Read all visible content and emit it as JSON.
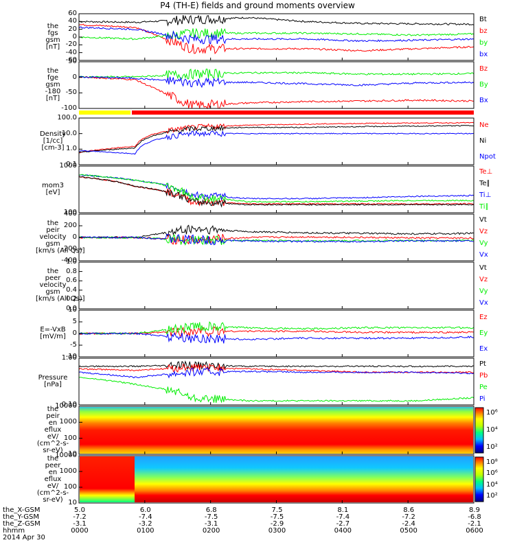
{
  "title": "P4 (TH-E) fields and ground moments overview",
  "colors": {
    "black": "#000000",
    "red": "#ff0000",
    "green": "#00ee00",
    "blue": "#0000ff",
    "yellow": "#ffff00"
  },
  "panels": [
    {
      "id": "fgs",
      "ylabel": [
        "the",
        "fgs",
        "gsm",
        "[nT]"
      ],
      "yticks": [
        "60",
        "40",
        "20",
        "0",
        "-20",
        "-40",
        "-60"
      ],
      "ylim": [
        -60,
        60
      ],
      "series": [
        "Bt",
        "bz",
        "by",
        "bx"
      ]
    },
    {
      "id": "fge",
      "ylabel": [
        "the",
        "fge",
        "gsm",
        "-180",
        "[nT]"
      ],
      "yticks": [
        "50",
        "0",
        "-50",
        "-100"
      ],
      "ylim": [
        -115,
        55
      ],
      "series": [
        "Bz",
        "By",
        "Bx"
      ]
    },
    {
      "id": "density",
      "ylabel": [
        "Density",
        "[1/cc]",
        "[cm-3]"
      ],
      "yticks": [
        "100.0",
        "10.0",
        "1.0",
        "0.1"
      ],
      "scale": "log",
      "ylim": [
        0.1,
        100
      ],
      "series": [
        "Ne",
        "Ni",
        "Npot"
      ]
    },
    {
      "id": "temperature",
      "ylabel": [
        "mom3",
        "[eV]"
      ],
      "yticks": [
        "1000",
        "100"
      ],
      "scale": "log",
      "ylim": [
        20,
        4000
      ],
      "series": [
        "Te⊥",
        "Te∥",
        "Ti⊥",
        "Ti∥"
      ]
    },
    {
      "id": "peir_velocity",
      "ylabel": [
        "the",
        "peir",
        "velocity",
        "gsm",
        "[km/s (All Qs)]"
      ],
      "yticks": [
        "400",
        "200",
        "0",
        "-200",
        "-400"
      ],
      "ylim": [
        -400,
        400
      ],
      "series": [
        "Vt",
        "Vz",
        "Vy",
        "Vx"
      ]
    },
    {
      "id": "peer_velocity",
      "ylabel": [
        "the",
        "peer",
        "velocity",
        "gsm",
        "[km/s (All Qs)]"
      ],
      "yticks": [
        "1.0",
        "0.8",
        "0.6",
        "0.4",
        "0.2",
        "0.0"
      ],
      "ylim": [
        0,
        1
      ],
      "series": [
        "Vt",
        "Vz",
        "Vy",
        "Vx"
      ]
    },
    {
      "id": "efield",
      "ylabel": [
        "E=-VxB",
        "[mV/m]"
      ],
      "yticks": [
        "10",
        "5",
        "0",
        "-5",
        "-10"
      ],
      "ylim": [
        -10,
        10
      ],
      "series": [
        "Ez",
        "Ey",
        "Ex"
      ]
    },
    {
      "id": "pressure",
      "ylabel": [
        "Pressure",
        "[nPa]"
      ],
      "yticks": [
        "1.00",
        "0.10"
      ],
      "scale": "log",
      "ylim": [
        0.02,
        2
      ],
      "series": [
        "Pt",
        "Pb",
        "Pe",
        "Pi"
      ]
    },
    {
      "id": "peir_eflux",
      "ylabel": [
        "the",
        "peir",
        "en",
        "eflux",
        "eV/",
        "(cm^2-s-",
        "sr-eV)"
      ],
      "yticks": [
        "10000",
        "1000",
        "100",
        "10"
      ],
      "scale": "log",
      "ylim": [
        8,
        30000
      ],
      "colorbar": [
        "10⁶",
        "10⁴",
        "10²"
      ]
    },
    {
      "id": "peer_eflux",
      "ylabel": [
        "the",
        "peer",
        "en",
        "eflux",
        "eV/",
        "(cm^2-s-",
        "sr-eV)"
      ],
      "yticks": [
        "10000",
        "1000",
        "100",
        "10"
      ],
      "scale": "log",
      "ylim": [
        8,
        30000
      ],
      "colorbar": [
        "10⁸",
        "10⁶",
        "10⁴",
        "10²"
      ]
    }
  ],
  "chart_data": {
    "type": "line",
    "title": "P4 (TH-E) fields and ground moments overview",
    "x_hhmm": [
      "0000",
      "0100",
      "0200",
      "0300",
      "0400",
      "0500",
      "0600"
    ],
    "xaxis_rows": [
      {
        "label": "the_X-GSM",
        "values": [
          "5.0",
          "6.0",
          "6.8",
          "7.5",
          "8.1",
          "8.6",
          "8.9"
        ]
      },
      {
        "label": "the_Y-GSM",
        "values": [
          "-7.2",
          "-7.4",
          "-7.5",
          "-7.5",
          "-7.4",
          "-7.2",
          "-6.8"
        ]
      },
      {
        "label": "the_Z-GSM",
        "values": [
          "-3.1",
          "-3.2",
          "-3.1",
          "-2.9",
          "-2.7",
          "-2.4",
          "-2.1"
        ]
      },
      {
        "label": "hhmm",
        "values": [
          "0000",
          "0100",
          "0200",
          "0300",
          "0400",
          "0500",
          "0600"
        ]
      }
    ],
    "date": "2014 Apr 30",
    "fgs": {
      "Bt": [
        40,
        38,
        45,
        50,
        40,
        35,
        34,
        33
      ],
      "bz": [
        32,
        25,
        -30,
        -30,
        -30,
        -35,
        -30,
        -25
      ],
      "by": [
        0,
        -5,
        10,
        10,
        10,
        8,
        5,
        8
      ],
      "bx": [
        25,
        20,
        -5,
        -5,
        -5,
        -10,
        -8,
        -5
      ]
    },
    "fge": {
      "Bz": [
        0,
        -10,
        -105,
        -95,
        -90,
        -88,
        -85,
        -88
      ],
      "By": [
        0,
        0,
        10,
        15,
        15,
        10,
        10,
        12
      ],
      "Bx": [
        0,
        -5,
        -20,
        -20,
        -25,
        -30,
        -22,
        -20
      ]
    },
    "density": {
      "Ne": [
        0.6,
        1.5,
        25,
        35,
        40,
        45,
        48,
        50
      ],
      "Ni": [
        0.6,
        1.2,
        20,
        25,
        25,
        28,
        30,
        33
      ],
      "Npot": [
        0.8,
        0.5,
        10,
        10,
        10,
        10,
        10,
        10
      ]
    },
    "temperature": {
      "Te⊥": [
        1200,
        400,
        70,
        55,
        55,
        55,
        55,
        55
      ],
      "Te∥": [
        1200,
        400,
        70,
        50,
        50,
        50,
        50,
        50
      ],
      "Ti⊥": [
        1500,
        800,
        150,
        100,
        100,
        110,
        130,
        140
      ],
      "Ti∥": [
        1500,
        800,
        120,
        70,
        70,
        75,
        80,
        80
      ]
    },
    "peir_velocity": {
      "Vt": [
        0,
        0,
        150,
        100,
        80,
        70,
        60,
        70
      ],
      "Vz": [
        0,
        0,
        -50,
        0,
        10,
        0,
        -10,
        -10
      ],
      "Vy": [
        0,
        0,
        -50,
        -50,
        -60,
        -55,
        -55,
        -50
      ],
      "Vx": [
        0,
        0,
        -40,
        -60,
        -70,
        -70,
        -60,
        -60
      ]
    },
    "efield": {
      "Ez": [
        0,
        0,
        1,
        1,
        1,
        0.5,
        0.5,
        0.5
      ],
      "Ey": [
        0,
        0,
        3,
        2.5,
        2,
        2.5,
        2.5,
        2.5
      ],
      "Ex": [
        0,
        0,
        -2,
        -2.5,
        -2,
        -2,
        -2,
        -1.5
      ]
    },
    "pressure": {
      "Pt": [
        0.9,
        0.9,
        1.0,
        0.9,
        0.9,
        0.9,
        0.9,
        0.9
      ],
      "Pb": [
        0.7,
        0.6,
        0.8,
        0.7,
        0.6,
        0.5,
        0.5,
        0.5
      ],
      "Pe": [
        0.3,
        0.15,
        0.04,
        0.03,
        0.03,
        0.03,
        0.03,
        0.04
      ],
      "Pi": [
        0.5,
        0.3,
        0.5,
        0.55,
        0.5,
        0.5,
        0.5,
        0.45
      ]
    }
  }
}
